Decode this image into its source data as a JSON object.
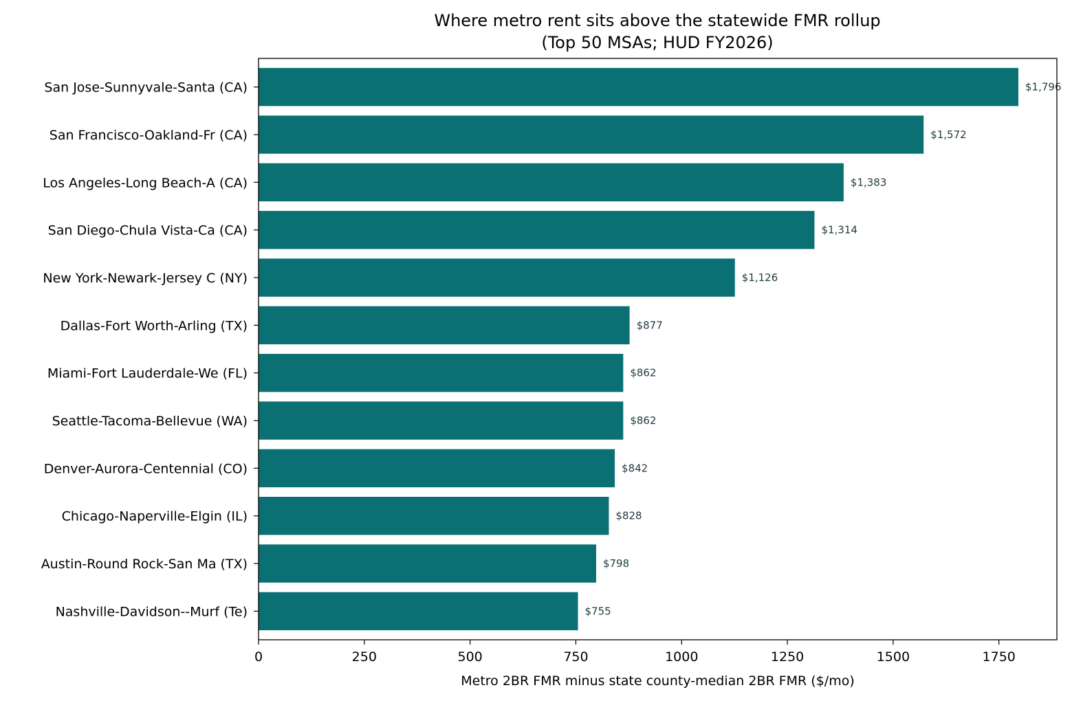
{
  "chart_data": {
    "type": "bar",
    "orientation": "horizontal",
    "title_lines": [
      "Where metro rent sits above the statewide FMR rollup",
      "(Top 50 MSAs; HUD FY2026)"
    ],
    "xlabel": "Metro 2BR FMR minus state county-median 2BR FMR ($/mo)",
    "ylabel": "",
    "xlim": [
      0,
      1887
    ],
    "xticks": [
      0,
      250,
      500,
      750,
      1000,
      1250,
      1500,
      1750
    ],
    "xtick_labels": [
      "0",
      "250",
      "500",
      "750",
      "1000",
      "1250",
      "1500",
      "1750"
    ],
    "grid": false,
    "categories": [
      "San Jose-Sunnyvale-Santa (CA)",
      "San Francisco-Oakland-Fr (CA)",
      "Los Angeles-Long Beach-A (CA)",
      "San Diego-Chula Vista-Ca (CA)",
      "New York-Newark-Jersey C (NY)",
      "Dallas-Fort Worth-Arling (TX)",
      "Miami-Fort Lauderdale-We (FL)",
      "Seattle-Tacoma-Bellevue (WA)",
      "Denver-Aurora-Centennial (CO)",
      "Chicago-Naperville-Elgin (IL)",
      "Austin-Round Rock-San Ma (TX)",
      "Nashville-Davidson--Murf (Te)"
    ],
    "values": [
      1796,
      1572,
      1383,
      1314,
      1126,
      877,
      862,
      862,
      842,
      828,
      798,
      755
    ],
    "data_labels": [
      "$1,796",
      "$1,572",
      "$1,383",
      "$1,314",
      "$1,126",
      "$877",
      "$862",
      "$862",
      "$842",
      "$828",
      "$798",
      "$755"
    ],
    "bar_color": "#0a7073",
    "label_color": "#1f3a3d"
  }
}
